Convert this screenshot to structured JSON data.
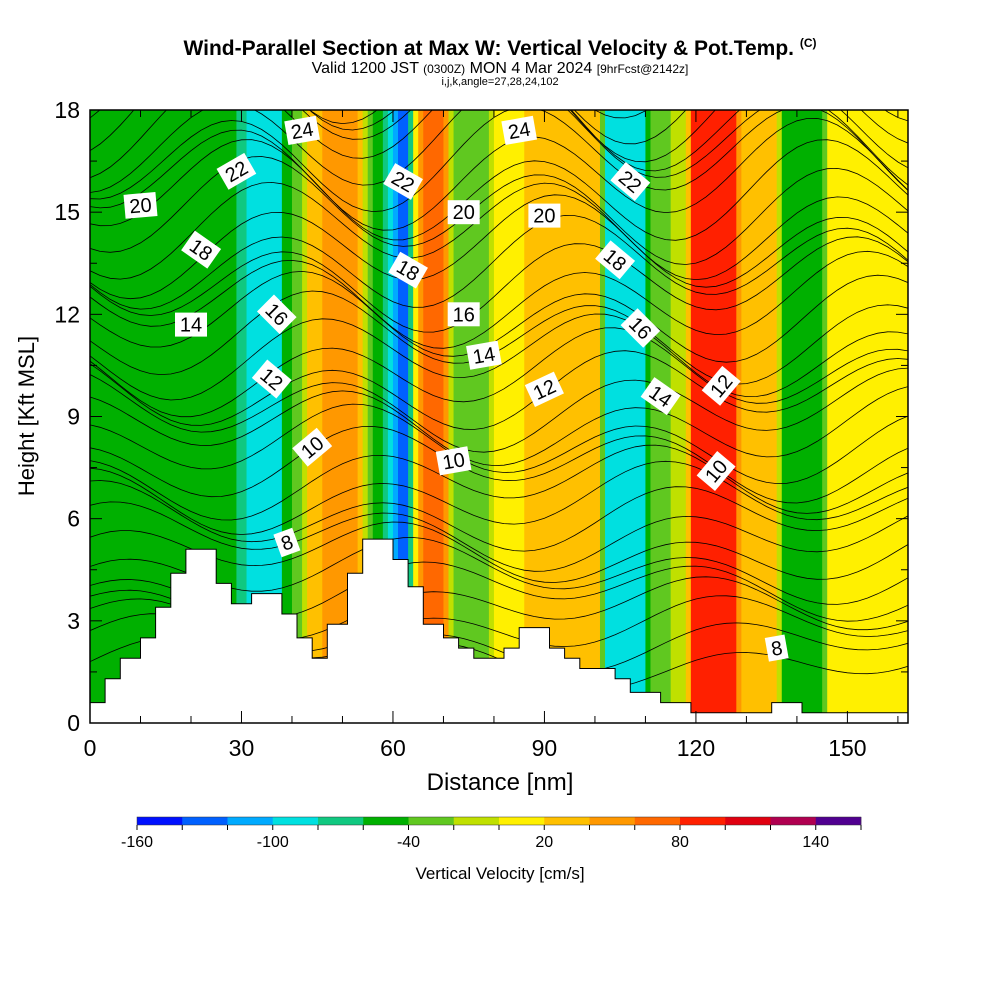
{
  "header": {
    "title": "Wind-Parallel Section at Max W: Vertical Velocity & Pot.Temp.",
    "copyright": "(C)",
    "valid_prefix": "Valid 1200 JST",
    "valid_utc": "(0300Z)",
    "valid_date": "MON 4 Mar 2024",
    "forecast": "[9hrFcst@2142z]",
    "indices": "i,j,k,angle=27,28,24,102"
  },
  "chart_data": {
    "type": "heatmap",
    "xlabel": "Distance [nm]",
    "ylabel": "Height [Kft MSL]",
    "xlim": [
      0,
      162
    ],
    "ylim": [
      0,
      18
    ],
    "x_ticks": [
      0,
      30,
      60,
      90,
      120,
      150
    ],
    "y_ticks": [
      0,
      3,
      6,
      9,
      12,
      15,
      18
    ],
    "colorbar": {
      "label": "Vertical Velocity [cm/s]",
      "tick_labels": [
        "-160",
        "-100",
        "-40",
        "20",
        "80",
        "140"
      ],
      "tick_values": [
        -160,
        -100,
        -40,
        20,
        80,
        140
      ],
      "min": -160,
      "max": 160,
      "step": 20,
      "colors": [
        "#0010ff",
        "#0060ff",
        "#00aaff",
        "#00e0e0",
        "#10c880",
        "#00b000",
        "#60c820",
        "#c0e000",
        "#fff000",
        "#ffc000",
        "#ff9800",
        "#ff6800",
        "#ff2000",
        "#e00010",
        "#b00050",
        "#500090"
      ]
    },
    "vertical_velocity_bands": [
      {
        "x": 22,
        "w": -40
      },
      {
        "x": 25,
        "w": -60
      },
      {
        "x": 35,
        "w": -100
      },
      {
        "x": 40,
        "w": -40
      },
      {
        "x": 44,
        "w": 40
      },
      {
        "x": 50,
        "w": 50
      },
      {
        "x": 57,
        "w": -40
      },
      {
        "x": 61,
        "w": -140
      },
      {
        "x": 66,
        "w": 70
      },
      {
        "x": 75,
        "w": -30
      },
      {
        "x": 83,
        "w": 20
      },
      {
        "x": 95,
        "w": 40
      },
      {
        "x": 107,
        "w": -100
      },
      {
        "x": 113,
        "w": -20
      },
      {
        "x": 123,
        "w": 100
      },
      {
        "x": 132,
        "w": 30
      },
      {
        "x": 140,
        "w": -60
      },
      {
        "x": 150,
        "w": 10
      }
    ],
    "contour_labels": [
      {
        "text": "24",
        "x": 42,
        "y": 17.4,
        "angle": -10
      },
      {
        "text": "24",
        "x": 85,
        "y": 17.4,
        "angle": -10
      },
      {
        "text": "22",
        "x": 29,
        "y": 16.2,
        "angle": -30
      },
      {
        "text": "22",
        "x": 62,
        "y": 15.9,
        "angle": 30
      },
      {
        "text": "22",
        "x": 107,
        "y": 15.9,
        "angle": 40
      },
      {
        "text": "20",
        "x": 10,
        "y": 15.2,
        "angle": -5
      },
      {
        "text": "20",
        "x": 74,
        "y": 15.0,
        "angle": 0
      },
      {
        "text": "20",
        "x": 90,
        "y": 14.9,
        "angle": 0
      },
      {
        "text": "18",
        "x": 22,
        "y": 13.9,
        "angle": 35
      },
      {
        "text": "18",
        "x": 63,
        "y": 13.3,
        "angle": 30
      },
      {
        "text": "18",
        "x": 104,
        "y": 13.6,
        "angle": 40
      },
      {
        "text": "16",
        "x": 37,
        "y": 12.0,
        "angle": 45
      },
      {
        "text": "16",
        "x": 74,
        "y": 12.0,
        "angle": 0
      },
      {
        "text": "16",
        "x": 109,
        "y": 11.6,
        "angle": 45
      },
      {
        "text": "14",
        "x": 20,
        "y": 11.7,
        "angle": 0
      },
      {
        "text": "14",
        "x": 78,
        "y": 10.8,
        "angle": -10
      },
      {
        "text": "14",
        "x": 113,
        "y": 9.6,
        "angle": 35
      },
      {
        "text": "12",
        "x": 36,
        "y": 10.1,
        "angle": 40
      },
      {
        "text": "12",
        "x": 90,
        "y": 9.8,
        "angle": -25
      },
      {
        "text": "12",
        "x": 125,
        "y": 9.9,
        "angle": -50
      },
      {
        "text": "10",
        "x": 44,
        "y": 8.1,
        "angle": -40
      },
      {
        "text": "10",
        "x": 72,
        "y": 7.7,
        "angle": -10
      },
      {
        "text": "10",
        "x": 124,
        "y": 7.4,
        "angle": -50
      },
      {
        "text": "8",
        "x": 39,
        "y": 5.3,
        "angle": -20
      },
      {
        "text": "8",
        "x": 136,
        "y": 2.2,
        "angle": -10
      }
    ],
    "terrain": [
      [
        0,
        0.6
      ],
      [
        3,
        0.6
      ],
      [
        3,
        1.3
      ],
      [
        6,
        1.3
      ],
      [
        6,
        1.9
      ],
      [
        10,
        1.9
      ],
      [
        10,
        2.5
      ],
      [
        13,
        2.5
      ],
      [
        13,
        3.4
      ],
      [
        16,
        3.4
      ],
      [
        16,
        4.4
      ],
      [
        19,
        4.4
      ],
      [
        19,
        5.1
      ],
      [
        25,
        5.1
      ],
      [
        25,
        4.1
      ],
      [
        28,
        4.1
      ],
      [
        28,
        3.5
      ],
      [
        32,
        3.5
      ],
      [
        32,
        3.8
      ],
      [
        38,
        3.8
      ],
      [
        38,
        3.2
      ],
      [
        41,
        3.2
      ],
      [
        41,
        2.5
      ],
      [
        44,
        2.5
      ],
      [
        44,
        1.9
      ],
      [
        47,
        1.9
      ],
      [
        47,
        2.9
      ],
      [
        51,
        2.9
      ],
      [
        51,
        4.4
      ],
      [
        54,
        4.4
      ],
      [
        54,
        5.4
      ],
      [
        60,
        5.4
      ],
      [
        60,
        4.8
      ],
      [
        63,
        4.8
      ],
      [
        63,
        4.0
      ],
      [
        66,
        4.0
      ],
      [
        66,
        2.9
      ],
      [
        70,
        2.9
      ],
      [
        70,
        2.5
      ],
      [
        73,
        2.5
      ],
      [
        73,
        2.2
      ],
      [
        76,
        2.2
      ],
      [
        76,
        1.9
      ],
      [
        82,
        1.9
      ],
      [
        82,
        2.2
      ],
      [
        85,
        2.2
      ],
      [
        85,
        2.8
      ],
      [
        91,
        2.8
      ],
      [
        91,
        2.2
      ],
      [
        94,
        2.2
      ],
      [
        94,
        1.9
      ],
      [
        97,
        1.9
      ],
      [
        97,
        1.6
      ],
      [
        104,
        1.6
      ],
      [
        104,
        1.3
      ],
      [
        107,
        1.3
      ],
      [
        107,
        0.9
      ],
      [
        113,
        0.9
      ],
      [
        113,
        0.6
      ],
      [
        119,
        0.6
      ],
      [
        119,
        0.3
      ],
      [
        135,
        0.3
      ],
      [
        135,
        0.6
      ],
      [
        141,
        0.6
      ],
      [
        141,
        0.3
      ],
      [
        162,
        0.3
      ]
    ]
  }
}
